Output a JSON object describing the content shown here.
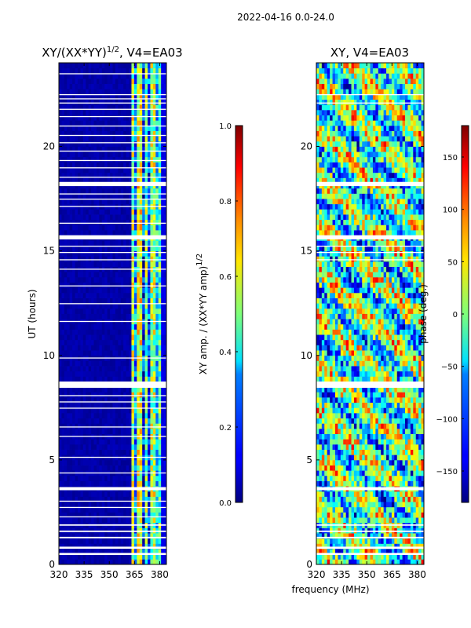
{
  "suptitle": "2022-04-16 0.0-24.0",
  "xlabel_shared": "frequency (MHz)",
  "chart_data": [
    {
      "type": "heatmap",
      "title_main": "XY/(XX*YY)",
      "title_exp": "1/2",
      "title_rest": ", V4=EA03",
      "xlabel": "",
      "ylabel": "UT (hours)",
      "xlim": [
        320,
        384
      ],
      "ylim": [
        0,
        24
      ],
      "xticks": [
        320,
        335,
        350,
        365,
        380
      ],
      "yticks": [
        0,
        5,
        10,
        15,
        20
      ],
      "colormap": "jet",
      "colorbar": {
        "label_main": "XY amp. / (XX*YY amp)",
        "label_exp": "1/2",
        "range": [
          0.0,
          1.0
        ],
        "ticks": [
          "0.0",
          "0.2",
          "0.4",
          "0.6",
          "0.8",
          "1.0"
        ],
        "tick_values": [
          0.0,
          0.2,
          0.4,
          0.6,
          0.8,
          1.0
        ]
      },
      "flagged_time_bands_hours": [
        [
          0.45,
          0.55
        ],
        [
          0.75,
          0.85
        ],
        [
          1.25,
          1.32
        ],
        [
          1.55,
          1.62
        ],
        [
          1.85,
          1.92
        ],
        [
          2.25,
          2.3
        ],
        [
          2.7,
          2.75
        ],
        [
          3.0,
          3.05
        ],
        [
          3.55,
          3.7
        ],
        [
          4.35,
          4.4
        ],
        [
          5.1,
          5.15
        ],
        [
          6.1,
          6.15
        ],
        [
          6.55,
          6.6
        ],
        [
          7.45,
          7.5
        ],
        [
          7.75,
          7.8
        ],
        [
          8.05,
          8.1
        ],
        [
          8.45,
          8.75
        ],
        [
          9.85,
          9.9
        ],
        [
          11.6,
          11.65
        ],
        [
          12.45,
          12.5
        ],
        [
          13.3,
          13.35
        ],
        [
          14.1,
          14.15
        ],
        [
          14.55,
          14.6
        ],
        [
          14.9,
          14.95
        ],
        [
          15.2,
          15.25
        ],
        [
          15.55,
          15.75
        ],
        [
          16.3,
          16.35
        ],
        [
          17.1,
          17.15
        ],
        [
          17.45,
          17.5
        ],
        [
          17.7,
          17.75
        ],
        [
          18.1,
          18.3
        ],
        [
          18.5,
          18.55
        ],
        [
          18.95,
          19.0
        ],
        [
          19.3,
          19.35
        ],
        [
          19.75,
          19.8
        ],
        [
          20.15,
          20.2
        ],
        [
          20.5,
          20.55
        ],
        [
          20.95,
          21.0
        ],
        [
          21.4,
          21.45
        ],
        [
          21.75,
          21.8
        ],
        [
          22.05,
          22.1
        ],
        [
          22.25,
          22.3
        ],
        [
          22.45,
          22.5
        ],
        [
          23.45,
          23.5
        ]
      ],
      "channel_columns_mhz": [
        {
          "from": 320,
          "to": 363,
          "level": 0.04
        },
        {
          "from": 363,
          "to": 365,
          "level": 0.55
        },
        {
          "from": 365,
          "to": 367,
          "level": 0.25
        },
        {
          "from": 367,
          "to": 369,
          "level": 0.6
        },
        {
          "from": 369,
          "to": 371,
          "level": 0.15
        },
        {
          "from": 371,
          "to": 373,
          "level": 0.5
        },
        {
          "from": 373,
          "to": 375,
          "level": 0.2
        },
        {
          "from": 375,
          "to": 377,
          "level": 0.55
        },
        {
          "from": 377,
          "to": 379,
          "level": 0.35
        },
        {
          "from": 379,
          "to": 381,
          "level": 0.45
        },
        {
          "from": 381,
          "to": 384,
          "level": 0.1
        }
      ]
    },
    {
      "type": "heatmap",
      "title_main": "XY, V4=EA03",
      "xlabel": "frequency (MHz)",
      "ylabel": "",
      "xlim": [
        320,
        384
      ],
      "ylim": [
        0,
        24
      ],
      "xticks": [
        320,
        335,
        350,
        365,
        380
      ],
      "yticks": [
        0,
        5,
        10,
        15,
        20
      ],
      "colormap": "jet",
      "colorbar": {
        "label_main": "phase (deg.)",
        "range": [
          -180,
          180
        ],
        "ticks": [
          "−150",
          "−100",
          "−50",
          "0",
          "50",
          "100",
          "150"
        ],
        "tick_values": [
          -150,
          -100,
          -50,
          0,
          50,
          100,
          150
        ]
      },
      "flagged_time_bands_hours": [
        [
          0.45,
          0.55
        ],
        [
          0.75,
          0.85
        ],
        [
          1.25,
          1.32
        ],
        [
          1.55,
          1.62
        ],
        [
          1.85,
          1.92
        ],
        [
          3.55,
          3.7
        ],
        [
          8.45,
          8.75
        ],
        [
          14.55,
          14.6
        ],
        [
          14.9,
          14.95
        ],
        [
          15.2,
          15.25
        ],
        [
          15.55,
          15.75
        ],
        [
          18.1,
          18.3
        ],
        [
          22.05,
          22.1
        ],
        [
          22.45,
          22.5
        ]
      ]
    }
  ]
}
